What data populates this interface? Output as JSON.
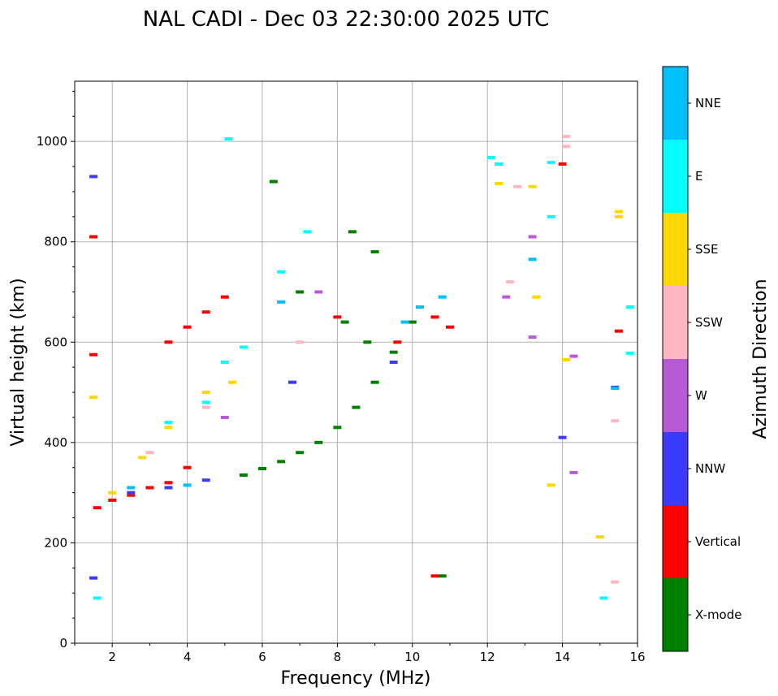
{
  "chart_data": {
    "type": "scatter",
    "title": "NAL CADI - Dec 03 22:30:00 2025 UTC",
    "xlabel": "Frequency (MHz)",
    "ylabel": "Virtual height (km)",
    "xlim": [
      1,
      16
    ],
    "ylim": [
      0,
      1120
    ],
    "xticks": [
      2,
      4,
      6,
      8,
      10,
      12,
      14,
      16
    ],
    "yticks": [
      0,
      200,
      400,
      600,
      800,
      1000
    ],
    "grid": true,
    "colorbar": {
      "label": "Azimuth Direction",
      "entries": [
        {
          "name": "X-mode",
          "color": "#008000"
        },
        {
          "name": "Vertical",
          "color": "#ff0000"
        },
        {
          "name": "NNW",
          "color": "#3b3bff"
        },
        {
          "name": "W",
          "color": "#b85ad6"
        },
        {
          "name": "SSW",
          "color": "#ffb6c1"
        },
        {
          "name": "SSE",
          "color": "#ffd700"
        },
        {
          "name": "E",
          "color": "#00ffff"
        },
        {
          "name": "NNE",
          "color": "#00bfff"
        }
      ]
    },
    "series": [
      {
        "name": "X-mode",
        "points": [
          [
            5.5,
            335
          ],
          [
            6.0,
            348
          ],
          [
            6.5,
            362
          ],
          [
            7.0,
            380
          ],
          [
            7.5,
            400
          ],
          [
            8.0,
            430
          ],
          [
            8.5,
            470
          ],
          [
            9.0,
            520
          ],
          [
            9.5,
            580
          ],
          [
            10.0,
            640
          ],
          [
            8.2,
            640
          ],
          [
            8.8,
            600
          ],
          [
            8.4,
            820
          ],
          [
            9.0,
            780
          ],
          [
            6.3,
            920
          ],
          [
            7.0,
            700
          ],
          [
            10.8,
            134
          ]
        ]
      },
      {
        "name": "Vertical",
        "points": [
          [
            1.6,
            270
          ],
          [
            2.0,
            285
          ],
          [
            2.5,
            295
          ],
          [
            3.0,
            310
          ],
          [
            3.5,
            320
          ],
          [
            4.0,
            350
          ],
          [
            3.5,
            600
          ],
          [
            4.0,
            630
          ],
          [
            4.5,
            660
          ],
          [
            5.0,
            690
          ],
          [
            8.0,
            650
          ],
          [
            9.6,
            600
          ],
          [
            10.6,
            650
          ],
          [
            11.0,
            630
          ],
          [
            14.0,
            955
          ],
          [
            15.5,
            622
          ],
          [
            10.6,
            134
          ],
          [
            1.5,
            575
          ],
          [
            1.5,
            810
          ]
        ]
      },
      {
        "name": "NNW",
        "points": [
          [
            2.5,
            300
          ],
          [
            3.5,
            310
          ],
          [
            4.5,
            325
          ],
          [
            6.8,
            520
          ],
          [
            9.5,
            560
          ],
          [
            15.4,
            510
          ],
          [
            1.5,
            930
          ],
          [
            1.5,
            130
          ],
          [
            14.0,
            410
          ]
        ]
      },
      {
        "name": "W",
        "points": [
          [
            5.0,
            450
          ],
          [
            7.5,
            700
          ],
          [
            12.5,
            690
          ],
          [
            13.2,
            810
          ],
          [
            13.2,
            610
          ],
          [
            14.3,
            340
          ],
          [
            14.3,
            572
          ]
        ]
      },
      {
        "name": "SSW",
        "points": [
          [
            3.0,
            380
          ],
          [
            4.5,
            470
          ],
          [
            7.0,
            600
          ],
          [
            12.6,
            720
          ],
          [
            12.8,
            910
          ],
          [
            14.1,
            1010
          ],
          [
            14.1,
            990
          ],
          [
            15.4,
            443
          ],
          [
            15.4,
            122
          ]
        ]
      },
      {
        "name": "SSE",
        "points": [
          [
            2.0,
            300
          ],
          [
            2.8,
            370
          ],
          [
            3.5,
            430
          ],
          [
            4.5,
            500
          ],
          [
            5.2,
            520
          ],
          [
            12.3,
            916
          ],
          [
            13.2,
            910
          ],
          [
            13.3,
            690
          ],
          [
            13.7,
            315
          ],
          [
            14.1,
            565
          ],
          [
            15.0,
            212
          ],
          [
            15.5,
            850
          ],
          [
            15.5,
            860
          ],
          [
            1.5,
            490
          ]
        ]
      },
      {
        "name": "E",
        "points": [
          [
            3.5,
            440
          ],
          [
            4.5,
            480
          ],
          [
            5.0,
            560
          ],
          [
            5.5,
            590
          ],
          [
            6.5,
            740
          ],
          [
            7.2,
            820
          ],
          [
            12.1,
            968
          ],
          [
            12.3,
            955
          ],
          [
            13.7,
            958
          ],
          [
            13.7,
            850
          ],
          [
            15.1,
            90
          ],
          [
            15.8,
            670
          ],
          [
            15.8,
            578
          ],
          [
            1.6,
            90
          ],
          [
            5.1,
            1005
          ]
        ]
      },
      {
        "name": "NNE",
        "points": [
          [
            2.5,
            310
          ],
          [
            4.0,
            315
          ],
          [
            6.5,
            680
          ],
          [
            9.8,
            640
          ],
          [
            10.2,
            670
          ],
          [
            10.8,
            690
          ],
          [
            13.2,
            765
          ],
          [
            15.4,
            508
          ]
        ]
      }
    ]
  }
}
